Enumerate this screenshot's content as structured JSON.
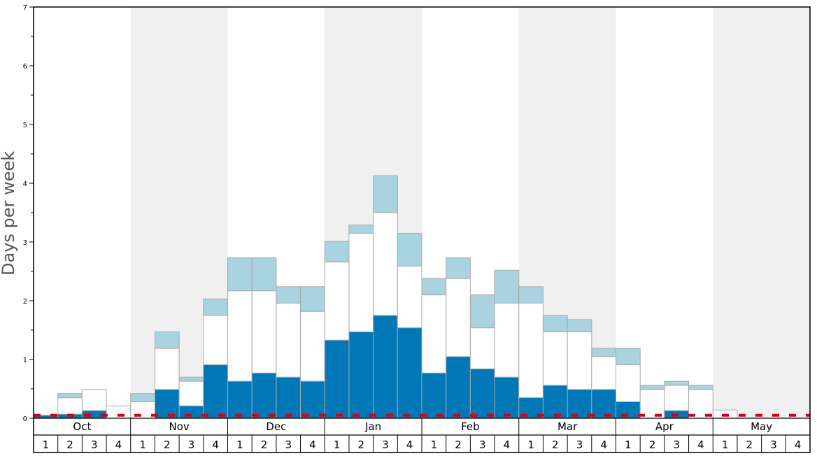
{
  "chart_data": {
    "type": "bar",
    "stacked": true,
    "ylabel": "Days per week",
    "ylim": [
      0,
      7
    ],
    "y_ticks": [
      "0",
      "1",
      "2",
      "3",
      "4",
      "5",
      "6",
      "7"
    ],
    "months": [
      "Oct",
      "Nov",
      "Dec",
      "Jan",
      "Feb",
      "Mar",
      "Apr",
      "May"
    ],
    "week_labels": [
      "1",
      "2",
      "3",
      "4"
    ],
    "shaded_months": [
      "Nov",
      "Jan",
      "Mar",
      "May"
    ],
    "reference_line": {
      "value": 0.05,
      "style": "dashed",
      "color": "#d0021b"
    },
    "colors": {
      "dark": "#0077b6",
      "white": "#fefefe",
      "light": "#a9d3e0",
      "band": "#f0f0f0",
      "bar_stroke": "#a8a8a8"
    },
    "series": [
      {
        "color_key": "dark",
        "values": [
          0.05,
          0.07,
          0.13,
          0.0,
          0.0,
          0.49,
          0.21,
          0.91,
          0.63,
          0.77,
          0.7,
          0.63,
          1.33,
          1.47,
          1.75,
          1.54,
          0.77,
          1.05,
          0.84,
          0.7,
          0.35,
          0.56,
          0.49,
          0.49,
          0.28,
          0.0,
          0.13,
          0.0,
          0.0,
          0.0,
          0.0,
          0.0
        ]
      },
      {
        "color_key": "white",
        "values": [
          0.0,
          0.28,
          0.36,
          0.21,
          0.28,
          0.7,
          0.42,
          0.84,
          1.54,
          1.4,
          1.26,
          1.19,
          1.33,
          1.68,
          1.75,
          1.05,
          1.33,
          1.33,
          0.7,
          1.26,
          1.61,
          0.91,
          0.98,
          0.56,
          0.63,
          0.49,
          0.43,
          0.49,
          0.14,
          0.0,
          0.0,
          0.0
        ]
      },
      {
        "color_key": "light",
        "values": [
          0.0,
          0.07,
          0.0,
          0.0,
          0.14,
          0.28,
          0.07,
          0.28,
          0.56,
          0.56,
          0.28,
          0.42,
          0.35,
          0.14,
          0.63,
          0.56,
          0.28,
          0.35,
          0.56,
          0.56,
          0.28,
          0.28,
          0.21,
          0.14,
          0.28,
          0.07,
          0.07,
          0.07,
          0.0,
          0.0,
          0.0,
          0.0
        ]
      }
    ]
  }
}
